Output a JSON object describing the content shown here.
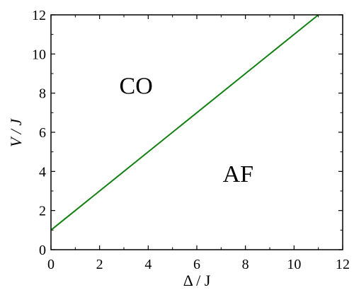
{
  "chart_data": {
    "type": "line",
    "xlabel": "Δ / J",
    "ylabel": "V / J",
    "xlim": [
      0,
      12
    ],
    "ylim": [
      0,
      12
    ],
    "xticks": [
      "0",
      "2",
      "4",
      "6",
      "8",
      "10",
      "12"
    ],
    "yticks": [
      "0",
      "2",
      "4",
      "6",
      "8",
      "10",
      "12"
    ],
    "grid": false,
    "series": [
      {
        "color": "#118011",
        "x": [
          0,
          11
        ],
        "y": [
          1,
          12
        ]
      }
    ],
    "annotations": [
      {
        "text": "CO",
        "x": 3.5,
        "y": 8.4
      },
      {
        "text": "AF",
        "x": 7.7,
        "y": 3.9
      }
    ]
  }
}
